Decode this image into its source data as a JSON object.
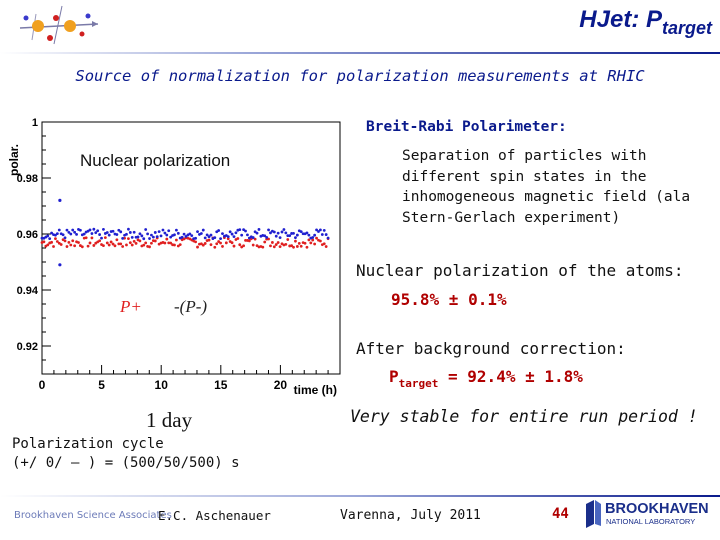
{
  "header": {
    "title": "HJet: P",
    "title_sub": "target",
    "subtitle": "Source of normalization for polarization measurements at RHIC"
  },
  "plot": {
    "legend_title": "Nuclear polarization",
    "series_labels": [
      "P+",
      "-(P-)"
    ],
    "ylabel": "polar.",
    "xlabel": "time (h)",
    "series_colors": [
      "#e02020",
      "#2020d0"
    ],
    "y_ticks": [
      "1",
      "0.98",
      "0.96",
      "0.94",
      "0.92"
    ],
    "x_ticks": [
      "0",
      "5",
      "10",
      "15",
      "20"
    ],
    "annotation": "1 day"
  },
  "chart_data": {
    "type": "scatter",
    "xlabel": "time (h)",
    "ylabel": "polar.",
    "xlim": [
      0,
      25
    ],
    "ylim": [
      0.91,
      1.0
    ],
    "grid": false,
    "series": [
      {
        "name": "P+",
        "color": "#e02020",
        "level": 0.957,
        "x_range": [
          0,
          24
        ]
      },
      {
        "name": "-(P-)",
        "color": "#2020d0",
        "level": 0.96,
        "x_range": [
          0,
          24
        ],
        "outliers": [
          [
            1.5,
            0.972
          ],
          [
            1.5,
            0.949
          ]
        ]
      }
    ]
  },
  "right": {
    "br_heading": "Breit-Rabi Polarimeter:",
    "br_desc": [
      "Separation of particles with",
      "different spin states in the",
      "inhomogeneous magnetic field (ala",
      "Stern-Gerlach experiment)"
    ],
    "np_heading": "Nuclear polarization of the atoms:",
    "np_value": "95.8% ± 0.1%",
    "bg_heading": "After background correction:",
    "pt_label": "P",
    "pt_sub": "target",
    "pt_value": " = 92.4% ± 1.8%",
    "stable": "Very stable for entire run period !"
  },
  "cycle": {
    "line1": "Polarization cycle",
    "line2": "(+/ 0/ – ) = (500/50/500) s"
  },
  "footer": {
    "left": "Brookhaven Science Associates",
    "author": "E.C. Aschenauer",
    "event": "Varenna, July 2011",
    "page": "44",
    "logo_main": "BROOKHAVEN",
    "logo_sub": "NATIONAL LABORATORY"
  }
}
